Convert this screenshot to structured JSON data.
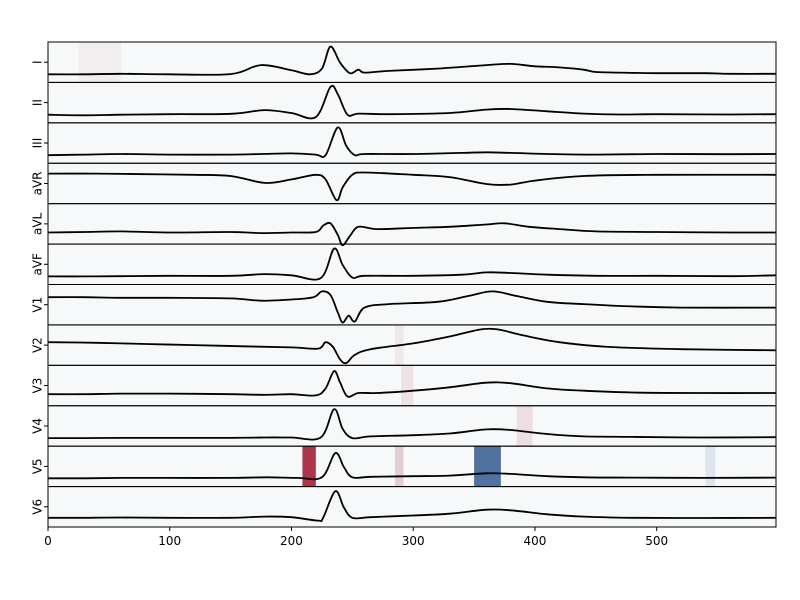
{
  "chart_data": {
    "type": "line",
    "xlim": [
      0,
      598
    ],
    "xticks": [
      0,
      100,
      200,
      300,
      400,
      500
    ],
    "leads": [
      {
        "name": "I",
        "key": [
          [
            0,
            0.2
          ],
          [
            30,
            0.2
          ],
          [
            60,
            0.25
          ],
          [
            100,
            0.2
          ],
          [
            150,
            0.22
          ],
          [
            175,
            1.0
          ],
          [
            200,
            0.55
          ],
          [
            215,
            0.2
          ],
          [
            225,
            0.7
          ],
          [
            232,
            2.6
          ],
          [
            240,
            1.2
          ],
          [
            248,
            0.3
          ],
          [
            255,
            0.6
          ],
          [
            260,
            0.35
          ],
          [
            280,
            0.5
          ],
          [
            320,
            0.7
          ],
          [
            360,
            1.0
          ],
          [
            380,
            1.1
          ],
          [
            400,
            0.9
          ],
          [
            420,
            0.8
          ],
          [
            440,
            0.6
          ],
          [
            450,
            0.4
          ],
          [
            470,
            0.35
          ],
          [
            500,
            0.3
          ],
          [
            540,
            0.3
          ],
          [
            560,
            0.25
          ],
          [
            598,
            0.25
          ]
        ]
      },
      {
        "name": "II",
        "key": [
          [
            0,
            0.2
          ],
          [
            30,
            0.15
          ],
          [
            60,
            0.2
          ],
          [
            100,
            0.25
          ],
          [
            150,
            0.28
          ],
          [
            178,
            0.6
          ],
          [
            200,
            0.35
          ],
          [
            220,
            0.0
          ],
          [
            232,
            2.6
          ],
          [
            238,
            2.0
          ],
          [
            246,
            0.2
          ],
          [
            255,
            0.3
          ],
          [
            280,
            0.25
          ],
          [
            330,
            0.35
          ],
          [
            360,
            0.65
          ],
          [
            380,
            0.7
          ],
          [
            410,
            0.5
          ],
          [
            440,
            0.3
          ],
          [
            470,
            0.22
          ],
          [
            500,
            0.25
          ],
          [
            560,
            0.22
          ],
          [
            598,
            0.25
          ]
        ]
      },
      {
        "name": "III",
        "key": [
          [
            0,
            0.2
          ],
          [
            30,
            0.25
          ],
          [
            60,
            0.3
          ],
          [
            100,
            0.25
          ],
          [
            150,
            0.25
          ],
          [
            175,
            0.3
          ],
          [
            200,
            0.35
          ],
          [
            220,
            0.25
          ],
          [
            228,
            0.2
          ],
          [
            238,
            2.6
          ],
          [
            245,
            1.0
          ],
          [
            252,
            0.2
          ],
          [
            260,
            0.3
          ],
          [
            300,
            0.3
          ],
          [
            340,
            0.4
          ],
          [
            360,
            0.45
          ],
          [
            380,
            0.4
          ],
          [
            410,
            0.3
          ],
          [
            450,
            0.25
          ],
          [
            500,
            0.3
          ],
          [
            560,
            0.28
          ],
          [
            598,
            0.3
          ]
        ]
      },
      {
        "name": "aVR",
        "key": [
          [
            0,
            2.1
          ],
          [
            40,
            2.1
          ],
          [
            80,
            2.05
          ],
          [
            120,
            2.0
          ],
          [
            150,
            1.9
          ],
          [
            178,
            1.3
          ],
          [
            200,
            1.6
          ],
          [
            220,
            2.0
          ],
          [
            228,
            1.6
          ],
          [
            237,
            -0.2
          ],
          [
            242,
            0.9
          ],
          [
            250,
            2.0
          ],
          [
            260,
            2.2
          ],
          [
            300,
            2.0
          ],
          [
            330,
            1.8
          ],
          [
            360,
            1.2
          ],
          [
            380,
            1.15
          ],
          [
            400,
            1.5
          ],
          [
            440,
            1.9
          ],
          [
            500,
            2.0
          ],
          [
            598,
            2.0
          ]
        ]
      },
      {
        "name": "aVL",
        "key": [
          [
            0,
            0.5
          ],
          [
            30,
            0.55
          ],
          [
            60,
            0.6
          ],
          [
            100,
            0.5
          ],
          [
            150,
            0.55
          ],
          [
            175,
            0.45
          ],
          [
            200,
            0.5
          ],
          [
            220,
            0.55
          ],
          [
            226,
            1.1
          ],
          [
            232,
            1.3
          ],
          [
            238,
            0.3
          ],
          [
            242,
            -0.6
          ],
          [
            248,
            0.2
          ],
          [
            255,
            1.0
          ],
          [
            270,
            0.8
          ],
          [
            300,
            0.9
          ],
          [
            330,
            1.0
          ],
          [
            360,
            1.2
          ],
          [
            375,
            1.3
          ],
          [
            395,
            1.0
          ],
          [
            420,
            0.8
          ],
          [
            450,
            0.6
          ],
          [
            500,
            0.55
          ],
          [
            560,
            0.5
          ],
          [
            598,
            0.5
          ]
        ]
      },
      {
        "name": "aVF",
        "key": [
          [
            0,
            0.2
          ],
          [
            30,
            0.2
          ],
          [
            60,
            0.22
          ],
          [
            100,
            0.25
          ],
          [
            150,
            0.25
          ],
          [
            178,
            0.4
          ],
          [
            200,
            0.3
          ],
          [
            224,
            0.05
          ],
          [
            235,
            2.6
          ],
          [
            242,
            1.2
          ],
          [
            250,
            0.1
          ],
          [
            260,
            0.25
          ],
          [
            300,
            0.25
          ],
          [
            340,
            0.35
          ],
          [
            360,
            0.55
          ],
          [
            380,
            0.5
          ],
          [
            410,
            0.35
          ],
          [
            450,
            0.25
          ],
          [
            500,
            0.25
          ],
          [
            560,
            0.22
          ],
          [
            598,
            0.3
          ]
        ]
      },
      {
        "name": "V1",
        "key": [
          [
            0,
            1.9
          ],
          [
            30,
            1.9
          ],
          [
            60,
            1.85
          ],
          [
            100,
            1.85
          ],
          [
            150,
            1.8
          ],
          [
            175,
            1.6
          ],
          [
            200,
            1.7
          ],
          [
            218,
            1.9
          ],
          [
            225,
            2.4
          ],
          [
            232,
            2.1
          ],
          [
            238,
            0.6
          ],
          [
            242,
            -0.3
          ],
          [
            247,
            0.3
          ],
          [
            252,
            -0.2
          ],
          [
            260,
            1.0
          ],
          [
            280,
            1.3
          ],
          [
            320,
            1.5
          ],
          [
            345,
            2.0
          ],
          [
            365,
            2.4
          ],
          [
            385,
            2.0
          ],
          [
            410,
            1.5
          ],
          [
            440,
            1.3
          ],
          [
            480,
            1.1
          ],
          [
            520,
            1.0
          ],
          [
            598,
            1.0
          ]
        ]
      },
      {
        "name": "V2",
        "key": [
          [
            0,
            1.5
          ],
          [
            40,
            1.45
          ],
          [
            80,
            1.35
          ],
          [
            120,
            1.25
          ],
          [
            160,
            1.15
          ],
          [
            200,
            1.05
          ],
          [
            222,
            0.95
          ],
          [
            228,
            1.5
          ],
          [
            234,
            1.1
          ],
          [
            240,
            0.0
          ],
          [
            245,
            -0.3
          ],
          [
            252,
            0.4
          ],
          [
            265,
            0.9
          ],
          [
            300,
            1.4
          ],
          [
            330,
            2.0
          ],
          [
            355,
            2.6
          ],
          [
            370,
            2.6
          ],
          [
            390,
            2.1
          ],
          [
            420,
            1.5
          ],
          [
            460,
            1.1
          ],
          [
            520,
            0.9
          ],
          [
            598,
            0.8
          ]
        ]
      },
      {
        "name": "V3",
        "key": [
          [
            0,
            0.5
          ],
          [
            30,
            0.5
          ],
          [
            60,
            0.55
          ],
          [
            100,
            0.55
          ],
          [
            150,
            0.5
          ],
          [
            178,
            0.45
          ],
          [
            200,
            0.5
          ],
          [
            220,
            0.4
          ],
          [
            228,
            1.0
          ],
          [
            235,
            2.5
          ],
          [
            240,
            1.5
          ],
          [
            246,
            0.3
          ],
          [
            255,
            0.6
          ],
          [
            270,
            0.6
          ],
          [
            300,
            0.8
          ],
          [
            330,
            1.1
          ],
          [
            360,
            1.5
          ],
          [
            380,
            1.45
          ],
          [
            410,
            1.0
          ],
          [
            440,
            0.8
          ],
          [
            480,
            0.65
          ],
          [
            540,
            0.6
          ],
          [
            598,
            0.6
          ]
        ]
      },
      {
        "name": "V4",
        "key": [
          [
            0,
            0.2
          ],
          [
            30,
            0.2
          ],
          [
            60,
            0.22
          ],
          [
            100,
            0.22
          ],
          [
            150,
            0.22
          ],
          [
            178,
            0.25
          ],
          [
            200,
            0.25
          ],
          [
            224,
            0.25
          ],
          [
            235,
            2.7
          ],
          [
            242,
            1.0
          ],
          [
            250,
            0.2
          ],
          [
            265,
            0.35
          ],
          [
            300,
            0.45
          ],
          [
            330,
            0.6
          ],
          [
            360,
            0.95
          ],
          [
            380,
            0.9
          ],
          [
            410,
            0.55
          ],
          [
            440,
            0.35
          ],
          [
            480,
            0.3
          ],
          [
            540,
            0.25
          ],
          [
            598,
            0.28
          ]
        ]
      },
      {
        "name": "V5",
        "key": [
          [
            0,
            0.22
          ],
          [
            30,
            0.22
          ],
          [
            60,
            0.25
          ],
          [
            100,
            0.25
          ],
          [
            150,
            0.25
          ],
          [
            180,
            0.3
          ],
          [
            205,
            0.25
          ],
          [
            225,
            0.3
          ],
          [
            236,
            2.4
          ],
          [
            243,
            1.2
          ],
          [
            250,
            0.3
          ],
          [
            265,
            0.35
          ],
          [
            300,
            0.4
          ],
          [
            330,
            0.45
          ],
          [
            360,
            0.65
          ],
          [
            380,
            0.6
          ],
          [
            410,
            0.4
          ],
          [
            440,
            0.3
          ],
          [
            480,
            0.28
          ],
          [
            540,
            0.25
          ],
          [
            598,
            0.28
          ]
        ]
      },
      {
        "name": "V6",
        "key": [
          [
            0,
            0.3
          ],
          [
            30,
            0.3
          ],
          [
            60,
            0.32
          ],
          [
            100,
            0.3
          ],
          [
            150,
            0.3
          ],
          [
            178,
            0.4
          ],
          [
            200,
            0.35
          ],
          [
            222,
            0.05
          ],
          [
            226,
            0.3
          ],
          [
            236,
            2.6
          ],
          [
            243,
            1.2
          ],
          [
            250,
            0.3
          ],
          [
            265,
            0.35
          ],
          [
            300,
            0.5
          ],
          [
            330,
            0.65
          ],
          [
            360,
            1.0
          ],
          [
            380,
            0.95
          ],
          [
            410,
            0.6
          ],
          [
            440,
            0.4
          ],
          [
            480,
            0.3
          ],
          [
            540,
            0.28
          ],
          [
            598,
            0.3
          ]
        ]
      }
    ],
    "heat_bands": [
      {
        "lead": "V5",
        "x0": 209,
        "x1": 220,
        "value": 0.9
      },
      {
        "lead": "V5",
        "x0": 350,
        "x1": 372,
        "value": -0.85
      },
      {
        "lead": "V5",
        "x0": 285,
        "x1": 292,
        "value": 0.2
      },
      {
        "lead": "V5",
        "x0": 540,
        "x1": 548,
        "value": -0.12
      },
      {
        "lead": "V4",
        "x0": 385,
        "x1": 398,
        "value": 0.12
      },
      {
        "lead": "V3",
        "x0": 290,
        "x1": 300,
        "value": 0.1
      },
      {
        "lead": "I",
        "x0": 25,
        "x1": 60,
        "value": 0.05
      },
      {
        "lead": "V2",
        "x0": 285,
        "x1": 292,
        "value": 0.08
      }
    ]
  }
}
